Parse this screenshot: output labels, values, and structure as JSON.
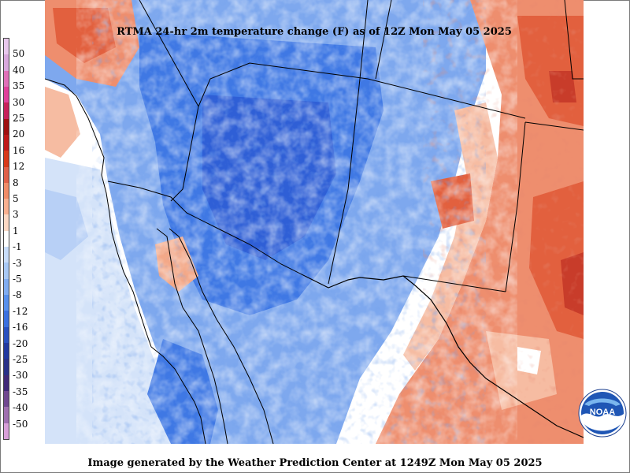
{
  "title": "RTMA 24-hr 2m temperature change (F) as of 12Z Mon May 05 2025",
  "footer": "Image generated by the Weather Prediction Center at 1249Z Mon May 05 2025",
  "logo": {
    "text": "NOAA",
    "icon": "noaa-logo-icon"
  },
  "legend": {
    "labels": [
      "50",
      "40",
      "35",
      "30",
      "25",
      "20",
      "16",
      "12",
      "8",
      "5",
      "3",
      "1",
      "-1",
      "-3",
      "-5",
      "-8",
      "-12",
      "-16",
      "-20",
      "-25",
      "-30",
      "-35",
      "-40",
      "-50"
    ],
    "colors": [
      "#e8c8ec",
      "#d8a8dc",
      "#e070b8",
      "#e0409a",
      "#c8205a",
      "#a01010",
      "#c01818",
      "#d83818",
      "#e06048",
      "#f08c68",
      "#f8b090",
      "#fbd8c4",
      "#ffffff",
      "#c8dcf8",
      "#a8c8f4",
      "#80acf0",
      "#5890ec",
      "#3a70e0",
      "#2850c0",
      "#2038a0",
      "#283088",
      "#402878",
      "#704890",
      "#a070b0",
      "#d8a0d8"
    ]
  },
  "colors": {
    "cool_light": "#c0d6f6",
    "cool_mid": "#7ea8ee",
    "cool_strong": "#3f78e4",
    "cool_deep": "#2f5fd6",
    "warm_light": "#f6bca2",
    "warm_mid": "#ee8e6e",
    "warm_strong": "#e2603e",
    "warm_deep": "#c83c2a",
    "border": "#000000"
  }
}
